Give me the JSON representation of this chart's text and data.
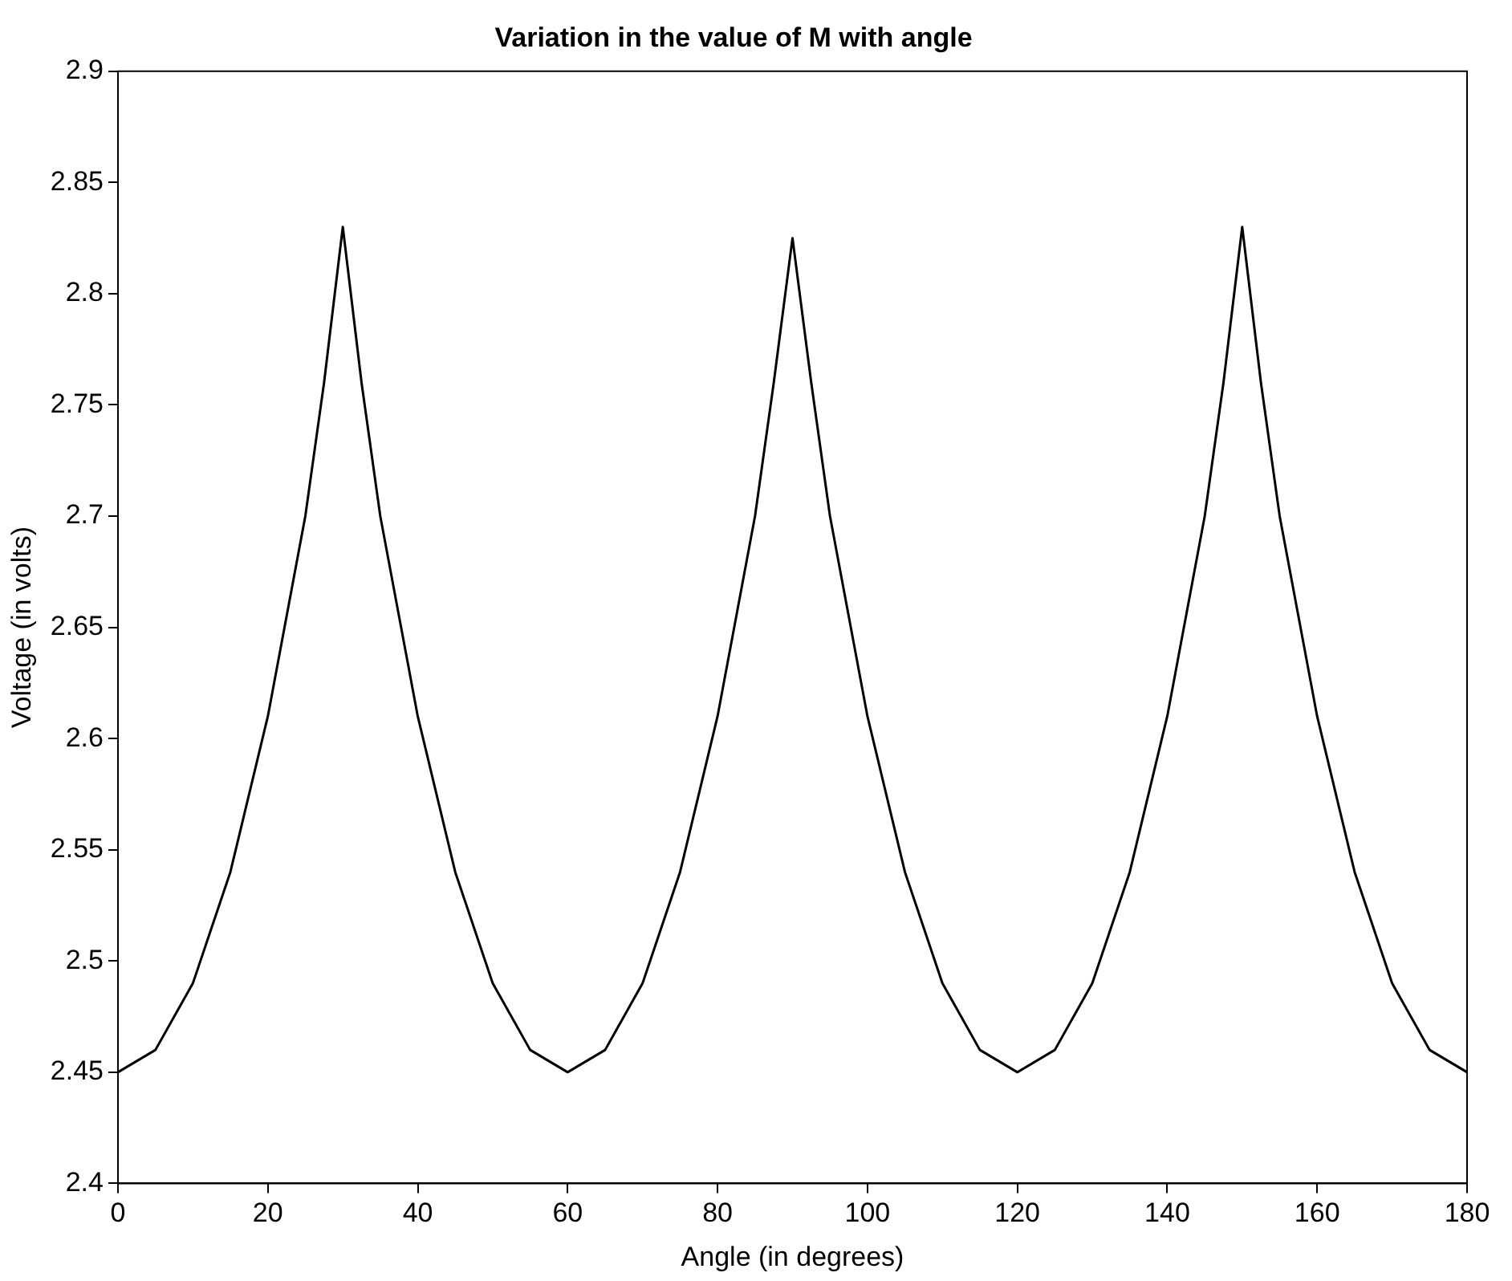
{
  "chart_data": {
    "type": "line",
    "title": "Variation in the value of M with angle",
    "xlabel": "Angle (in degrees)",
    "ylabel": "Voltage (in volts)",
    "x": [
      0,
      5,
      10,
      15,
      20,
      25,
      27.5,
      30,
      32.5,
      35,
      40,
      45,
      50,
      55,
      60,
      65,
      70,
      75,
      80,
      85,
      87.5,
      90,
      92.5,
      95,
      100,
      105,
      110,
      115,
      120,
      125,
      130,
      135,
      140,
      145,
      147.5,
      150,
      152.5,
      155,
      160,
      165,
      170,
      175,
      180
    ],
    "values": [
      2.45,
      2.46,
      2.49,
      2.54,
      2.61,
      2.7,
      2.76,
      2.83,
      2.76,
      2.7,
      2.61,
      2.54,
      2.49,
      2.46,
      2.45,
      2.46,
      2.49,
      2.54,
      2.61,
      2.7,
      2.76,
      2.825,
      2.76,
      2.7,
      2.61,
      2.54,
      2.49,
      2.46,
      2.45,
      2.46,
      2.49,
      2.54,
      2.61,
      2.7,
      2.76,
      2.83,
      2.76,
      2.7,
      2.61,
      2.54,
      2.49,
      2.46,
      2.45
    ],
    "color": "#000000",
    "xlim": [
      0,
      180
    ],
    "ylim": [
      2.4,
      2.9
    ],
    "xticks": [
      0,
      20,
      40,
      60,
      80,
      100,
      120,
      140,
      160,
      180
    ],
    "yticks": [
      2.4,
      2.45,
      2.5,
      2.55,
      2.6,
      2.65,
      2.7,
      2.75,
      2.8,
      2.85,
      2.9
    ]
  }
}
